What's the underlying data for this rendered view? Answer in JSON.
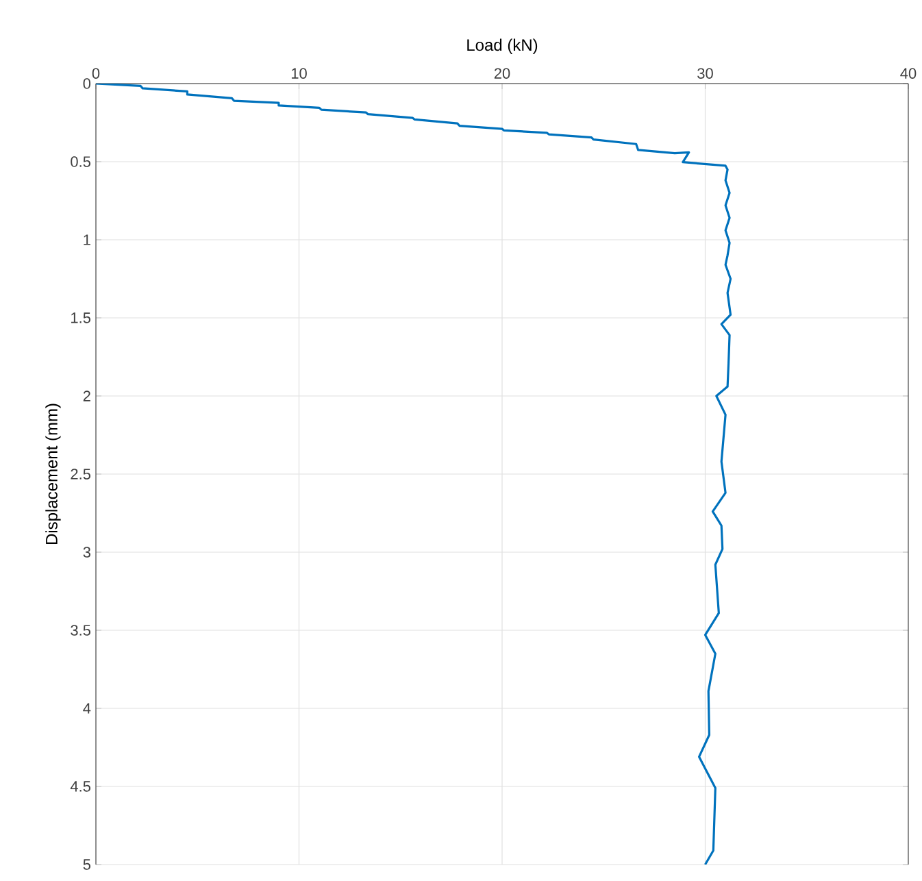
{
  "chart_data": {
    "type": "line",
    "xlabel": "Load (kN)",
    "ylabel": "Displacement (mm)",
    "xlim": [
      0,
      40
    ],
    "ylim": [
      5,
      0
    ],
    "xticks": [
      0,
      10,
      20,
      30,
      40
    ],
    "yticks": [
      0,
      0.5,
      1,
      1.5,
      2,
      2.5,
      3,
      3.5,
      4,
      4.5,
      5
    ],
    "grid": true,
    "series": [
      {
        "color": "#0072bd",
        "x": [
          0,
          2.2,
          2.3,
          4.5,
          4.5,
          6.7,
          6.8,
          9.0,
          9.0,
          11.0,
          11.1,
          13.3,
          13.4,
          15.6,
          15.7,
          17.8,
          17.9,
          20.0,
          20.1,
          22.2,
          22.3,
          24.4,
          24.5,
          26.6,
          26.7,
          28.5,
          29.2,
          28.9,
          31.0,
          31.1,
          31.0,
          31.2,
          31.0,
          31.2,
          31.0,
          31.2,
          31.1,
          31.0,
          31.25,
          31.1,
          31.25,
          30.8,
          31.2,
          31.15,
          31.1,
          30.55,
          31.0,
          30.8,
          31.0,
          30.37,
          30.8,
          30.85,
          30.5,
          30.67,
          30.0,
          30.5,
          30.16,
          30.2,
          29.7,
          30.5,
          30.4,
          30.0
        ],
        "values": [
          0,
          0.015,
          0.03,
          0.05,
          0.07,
          0.094,
          0.11,
          0.123,
          0.14,
          0.155,
          0.167,
          0.185,
          0.196,
          0.22,
          0.23,
          0.255,
          0.27,
          0.29,
          0.3,
          0.315,
          0.325,
          0.345,
          0.358,
          0.387,
          0.425,
          0.446,
          0.44,
          0.503,
          0.526,
          0.55,
          0.62,
          0.7,
          0.78,
          0.86,
          0.94,
          1.02,
          1.1,
          1.16,
          1.25,
          1.34,
          1.48,
          1.54,
          1.61,
          1.79,
          1.94,
          2.0,
          2.12,
          2.42,
          2.62,
          2.74,
          2.83,
          2.98,
          3.08,
          3.39,
          3.53,
          3.65,
          3.89,
          4.17,
          4.31,
          4.51,
          4.91,
          5.0
        ]
      }
    ]
  }
}
